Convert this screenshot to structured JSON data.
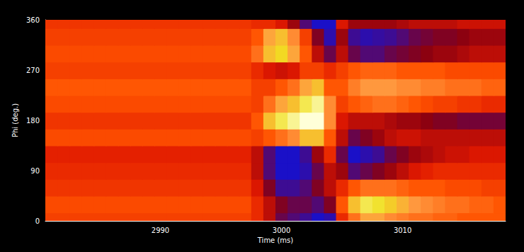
{
  "chart_data": {
    "type": "heatmap",
    "x_label": "Time (ms)",
    "y_label": "Phi (deg.)",
    "x": [
      2981,
      2982,
      2983,
      2984,
      2985,
      2986,
      2987,
      2988,
      2989,
      2990,
      2991,
      2992,
      2993,
      2994,
      2995,
      2996,
      2997,
      2998,
      2999,
      3000,
      3001,
      3002,
      3003,
      3004,
      3005,
      3006,
      3007,
      3008,
      3009,
      3010,
      3011,
      3012,
      3013,
      3014,
      3015,
      3016,
      3017,
      3018
    ],
    "y": [
      0,
      30,
      60,
      90,
      120,
      150,
      180,
      210,
      240,
      270,
      300,
      330,
      360
    ],
    "z": [
      [
        0.1,
        0.1,
        0.1,
        0.1,
        0.1,
        0.1,
        0.1,
        0.1,
        0.1,
        0.1,
        0.1,
        0.1,
        0.1,
        0.1,
        0.1,
        0.1,
        0.1,
        0.0,
        -0.2,
        -0.5,
        -0.6,
        -0.7,
        -0.9,
        -0.8,
        0.0,
        0.3,
        0.5,
        0.5,
        0.4,
        0.35,
        0.3,
        0.3,
        0.25,
        0.25,
        0.2,
        0.2,
        0.2,
        0.2
      ],
      [
        0.15,
        0.15,
        0.15,
        0.15,
        0.15,
        0.15,
        0.15,
        0.15,
        0.15,
        0.15,
        0.15,
        0.15,
        0.15,
        0.15,
        0.15,
        0.15,
        0.15,
        0.0,
        -0.2,
        -0.4,
        -0.5,
        -0.5,
        -0.6,
        -0.4,
        0.2,
        0.6,
        0.8,
        0.75,
        0.65,
        0.55,
        0.45,
        0.4,
        0.35,
        0.3,
        0.3,
        0.25,
        0.25,
        0.2
      ],
      [
        0.05,
        0.05,
        0.05,
        0.05,
        0.05,
        0.05,
        0.05,
        0.05,
        0.05,
        0.05,
        0.05,
        0.05,
        0.05,
        0.05,
        0.05,
        0.05,
        0.05,
        -0.1,
        -0.4,
        -0.7,
        -0.7,
        -0.6,
        -0.4,
        -0.2,
        0.0,
        0.2,
        0.3,
        0.3,
        0.3,
        0.25,
        0.2,
        0.2,
        0.2,
        0.15,
        0.15,
        0.15,
        0.1,
        0.1
      ],
      [
        0.0,
        0.0,
        0.0,
        0.0,
        0.0,
        0.0,
        0.0,
        0.0,
        0.0,
        0.0,
        0.0,
        0.0,
        0.0,
        0.0,
        0.0,
        0.0,
        0.0,
        -0.2,
        -0.6,
        -0.9,
        -0.9,
        -0.8,
        -0.5,
        -0.2,
        -0.3,
        -0.6,
        -0.5,
        -0.4,
        -0.3,
        -0.2,
        -0.1,
        -0.05,
        0.0,
        0.0,
        0.0,
        0.0,
        0.0,
        0.0
      ],
      [
        -0.05,
        -0.05,
        -0.05,
        -0.05,
        -0.05,
        -0.05,
        -0.05,
        -0.05,
        -0.05,
        -0.05,
        -0.05,
        -0.05,
        -0.05,
        -0.05,
        -0.05,
        -0.05,
        -0.05,
        -0.2,
        -0.6,
        -0.9,
        -0.9,
        -0.7,
        -0.3,
        0.0,
        -0.5,
        -0.9,
        -0.8,
        -0.7,
        -0.5,
        -0.4,
        -0.3,
        -0.25,
        -0.2,
        -0.15,
        -0.15,
        -0.1,
        -0.1,
        -0.1
      ],
      [
        0.15,
        0.15,
        0.15,
        0.15,
        0.15,
        0.15,
        0.15,
        0.15,
        0.15,
        0.15,
        0.15,
        0.15,
        0.15,
        0.15,
        0.15,
        0.15,
        0.15,
        0.1,
        0.2,
        0.3,
        0.4,
        0.6,
        0.6,
        0.2,
        -0.2,
        -0.5,
        -0.4,
        -0.3,
        -0.2,
        -0.15,
        -0.15,
        -0.2,
        -0.2,
        -0.2,
        -0.2,
        -0.2,
        -0.2,
        -0.2
      ],
      [
        0.05,
        0.05,
        0.05,
        0.05,
        0.05,
        0.05,
        0.05,
        0.05,
        0.05,
        0.05,
        0.05,
        0.05,
        0.05,
        0.05,
        0.05,
        0.05,
        0.05,
        0.2,
        0.6,
        0.8,
        0.9,
        1.0,
        1.0,
        0.4,
        -0.1,
        -0.2,
        -0.2,
        -0.2,
        -0.25,
        -0.3,
        -0.3,
        -0.35,
        -0.4,
        -0.4,
        -0.45,
        -0.45,
        -0.45,
        -0.45
      ],
      [
        0.15,
        0.15,
        0.15,
        0.15,
        0.15,
        0.15,
        0.15,
        0.15,
        0.15,
        0.15,
        0.15,
        0.15,
        0.15,
        0.15,
        0.15,
        0.15,
        0.15,
        0.1,
        0.3,
        0.5,
        0.6,
        0.8,
        0.9,
        0.4,
        0.1,
        0.2,
        0.25,
        0.3,
        0.3,
        0.25,
        0.2,
        0.15,
        0.1,
        0.1,
        0.05,
        0.05,
        0.0,
        0.0
      ],
      [
        0.2,
        0.2,
        0.2,
        0.2,
        0.2,
        0.2,
        0.2,
        0.2,
        0.2,
        0.2,
        0.2,
        0.2,
        0.2,
        0.2,
        0.2,
        0.2,
        0.2,
        0.1,
        0.1,
        0.2,
        0.3,
        0.5,
        0.6,
        0.2,
        0.2,
        0.35,
        0.45,
        0.45,
        0.45,
        0.4,
        0.4,
        0.35,
        0.35,
        0.3,
        0.3,
        0.3,
        0.25,
        0.25
      ],
      [
        0.1,
        0.1,
        0.1,
        0.1,
        0.1,
        0.1,
        0.1,
        0.1,
        0.1,
        0.1,
        0.1,
        0.1,
        0.1,
        0.1,
        0.1,
        0.1,
        0.1,
        0.0,
        -0.1,
        -0.15,
        -0.1,
        0.1,
        0.1,
        0.0,
        0.1,
        0.2,
        0.25,
        0.25,
        0.25,
        0.2,
        0.2,
        0.2,
        0.2,
        0.15,
        0.15,
        0.15,
        0.15,
        0.15
      ],
      [
        0.15,
        0.15,
        0.15,
        0.15,
        0.15,
        0.15,
        0.15,
        0.15,
        0.15,
        0.15,
        0.15,
        0.15,
        0.15,
        0.15,
        0.15,
        0.15,
        0.15,
        0.3,
        0.6,
        0.7,
        0.5,
        0.2,
        -0.2,
        -0.5,
        -0.2,
        -0.5,
        -0.6,
        -0.6,
        -0.5,
        -0.45,
        -0.4,
        -0.35,
        -0.3,
        -0.3,
        -0.25,
        -0.2,
        -0.2,
        -0.2
      ],
      [
        0.1,
        0.1,
        0.1,
        0.1,
        0.1,
        0.1,
        0.1,
        0.1,
        0.1,
        0.1,
        0.1,
        0.1,
        0.1,
        0.1,
        0.1,
        0.1,
        0.1,
        0.2,
        0.5,
        0.6,
        0.4,
        0.1,
        -0.4,
        -0.8,
        -0.3,
        -0.7,
        -0.8,
        -0.75,
        -0.7,
        -0.6,
        -0.5,
        -0.45,
        -0.4,
        -0.4,
        -0.35,
        -0.3,
        -0.3,
        -0.3
      ],
      [
        0.05,
        0.05,
        0.05,
        0.05,
        0.05,
        0.05,
        0.05,
        0.05,
        0.05,
        0.05,
        0.05,
        0.05,
        0.05,
        0.05,
        0.05,
        0.05,
        0.05,
        0.0,
        0.0,
        -0.1,
        -0.3,
        -0.6,
        -0.9,
        -0.9,
        -0.1,
        -0.3,
        -0.3,
        -0.3,
        -0.3,
        -0.25,
        -0.2,
        -0.2,
        -0.2,
        -0.2,
        -0.15,
        -0.15,
        -0.15,
        -0.15
      ]
    ],
    "xlim": [
      2980.5,
      3018.5
    ],
    "ylim": [
      0,
      360
    ],
    "xticks": [
      2990,
      3000,
      3010
    ],
    "yticks": [
      0,
      90,
      180,
      270,
      360
    ]
  }
}
